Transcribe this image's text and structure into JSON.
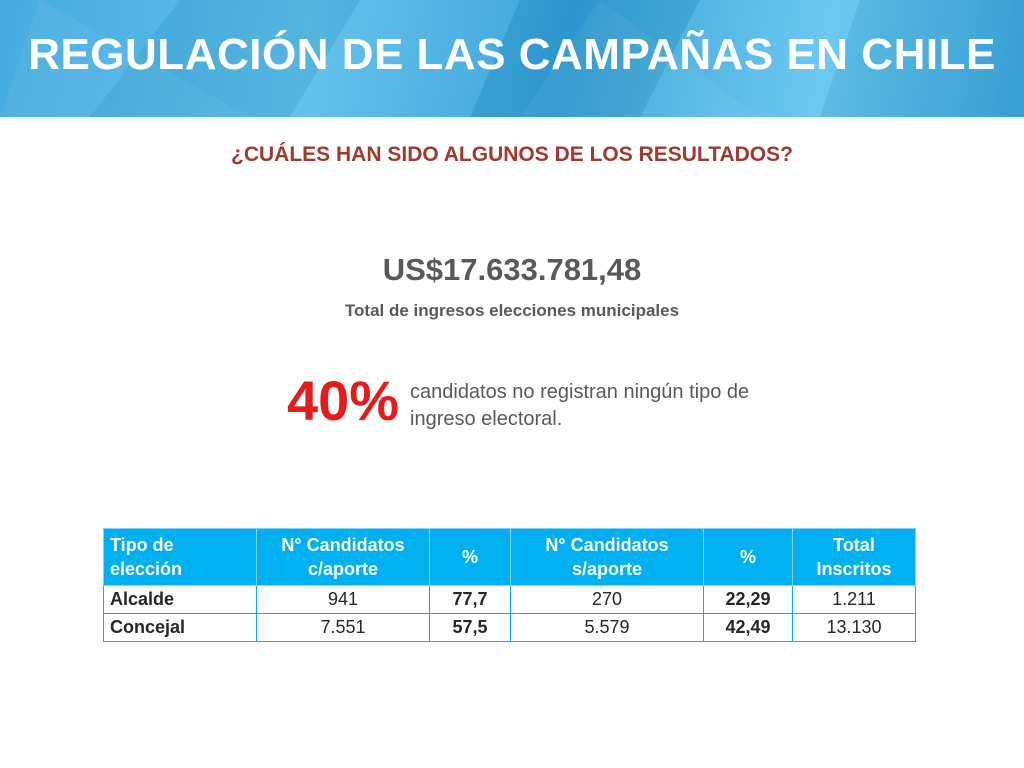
{
  "header": {
    "title": "REGULACIÓN DE LAS CAMPAÑAS EN CHILE"
  },
  "subtitle": "¿CUÁLES HAN SIDO ALGUNOS DE LOS RESULTADOS?",
  "income": {
    "amount": "US$17.633.781,48",
    "caption": "Total de ingresos elecciones municipales"
  },
  "stat": {
    "value": "40%",
    "text": "candidatos no registran ningún tipo de ingreso electoral."
  },
  "table": {
    "headers": [
      "Tipo de elección",
      "N° Candidatos c/aporte",
      "%",
      "N° Candidatos s/aporte",
      "%",
      "Total Inscritos"
    ],
    "rows": [
      [
        "Alcalde",
        "941",
        "77,7",
        "270",
        "22,29",
        "1.211"
      ],
      [
        "Concejal",
        "7.551",
        "57,5",
        "5.579",
        "42,49",
        "13.130"
      ]
    ]
  },
  "colors": {
    "banner": "#3aa6dd",
    "subtitle": "#a0392f",
    "highlight": "#e41c1c",
    "table_header": "#00b0f0"
  }
}
